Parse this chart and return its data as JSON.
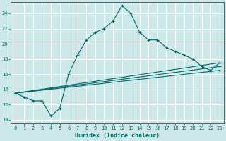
{
  "xlabel": "Humidex (Indice chaleur)",
  "ylabel": "",
  "background_color": "#cde8e8",
  "grid_color": "#ffffff",
  "line_color": "#006666",
  "xlim": [
    -0.5,
    23.5
  ],
  "ylim": [
    9.5,
    25.5
  ],
  "xticks": [
    0,
    1,
    2,
    3,
    4,
    5,
    6,
    7,
    8,
    9,
    10,
    11,
    12,
    13,
    14,
    15,
    16,
    17,
    18,
    19,
    20,
    21,
    22,
    23
  ],
  "yticks": [
    10,
    12,
    14,
    16,
    18,
    20,
    22,
    24
  ],
  "line1_x": [
    0,
    1,
    2,
    3,
    4,
    5,
    6,
    7,
    8,
    9,
    10,
    11,
    12,
    13,
    14,
    15,
    16,
    17,
    18,
    19,
    20,
    21,
    22,
    23
  ],
  "line1_y": [
    13.5,
    13.0,
    12.5,
    12.5,
    10.5,
    11.5,
    16.0,
    18.5,
    20.5,
    21.5,
    22.0,
    23.0,
    25.0,
    24.0,
    21.5,
    20.5,
    20.5,
    19.5,
    19.0,
    18.5,
    18.0,
    17.0,
    16.5,
    17.5
  ],
  "line2_x": [
    0,
    23
  ],
  "line2_y": [
    13.5,
    17.5
  ],
  "line3_x": [
    0,
    23
  ],
  "line3_y": [
    13.5,
    17.0
  ],
  "line4_x": [
    0,
    23
  ],
  "line4_y": [
    13.5,
    16.5
  ]
}
